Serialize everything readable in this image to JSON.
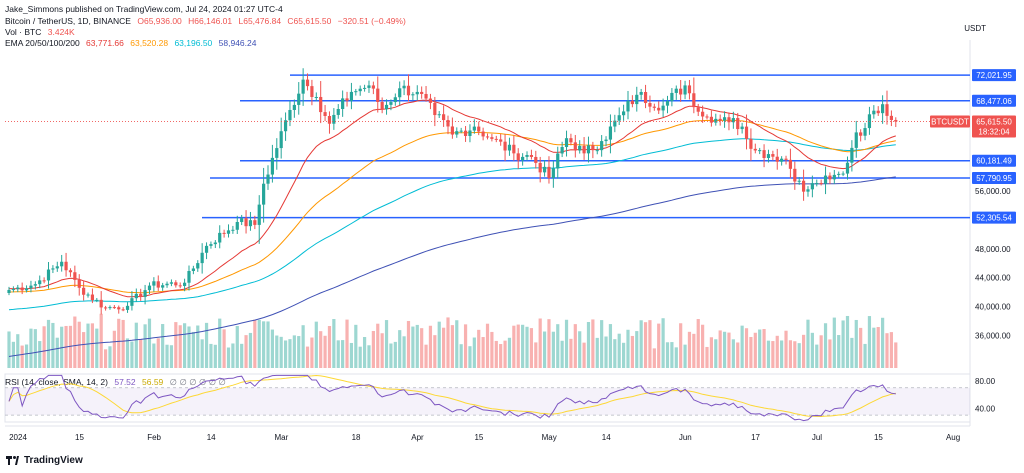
{
  "header": {
    "published": "Jake_Simmons published on TradingView.com, Jul 24, 2024 01:27 UTC-4",
    "symbol": "Bitcoin / TetherUS, 1D, BINANCE",
    "ohlc": {
      "o": "O65,936.00",
      "h": "H66,146.01",
      "l": "L65,476.84",
      "c": "C65,615.50",
      "chg": "−320.51 (−0.49%)"
    },
    "vol_label": "Vol · BTC",
    "vol_value": "3.424K",
    "ema_label": "EMA 20/50/100/200",
    "ema_values": [
      "63,771.66",
      "63,520.28",
      "63,196.50",
      "58,946.24"
    ],
    "rsi_label": "RSI (14, close, SMA, 14, 2)",
    "rsi_values": [
      "57.52",
      "56.59"
    ],
    "rsi_na": "∅ ∅ ∅ ∅ ∅ ∅"
  },
  "currency": "USDT",
  "footer_brand": "TradingView",
  "colors": {
    "up": "#26a69a",
    "down": "#ef5350",
    "ema20": "#e53935",
    "ema50": "#ff9800",
    "ema100": "#00bcd4",
    "ema200": "#3f51b5",
    "level": "#2962ff",
    "rsi": "#7e57c2",
    "rsi_ma": "#fdd835"
  },
  "chart_data": {
    "type": "candlestick",
    "title": "Bitcoin / TetherUS, 1D, BINANCE",
    "ylim": [
      31500,
      75500
    ],
    "y_ticks": [
      36000,
      40000,
      44000,
      48000,
      56000
    ],
    "y_tick_labels": [
      "36,000.00",
      "40,000.00",
      "44,000.00",
      "48,000.00",
      "56,000.00"
    ],
    "x_labels": [
      "2024",
      "15",
      "Feb",
      "14",
      "Mar",
      "18",
      "Apr",
      "15",
      "May",
      "14",
      "Jun",
      "17",
      "Jul",
      "15",
      "Aug"
    ],
    "x_label_days": [
      0,
      14,
      31,
      44,
      60,
      77,
      91,
      105,
      121,
      134,
      152,
      168,
      182,
      196,
      213
    ],
    "levels": [
      72021.95,
      68477.06,
      60181.49,
      57790.95,
      52305.54
    ],
    "level_labels": [
      "72,021.95",
      "68,477.06",
      "60,181.49",
      "57,790.95",
      "52,305.54"
    ],
    "last_price": 65615.5,
    "last_price_label": "65,615.50",
    "ticker_label": "BTCUSDT",
    "countdown": "18:32:04",
    "price_anchors": [
      [
        0,
        42300
      ],
      [
        6,
        43100
      ],
      [
        12,
        46200
      ],
      [
        16,
        42600
      ],
      [
        22,
        39800
      ],
      [
        27,
        40100
      ],
      [
        32,
        42900
      ],
      [
        40,
        43300
      ],
      [
        45,
        48400
      ],
      [
        52,
        51700
      ],
      [
        56,
        51300
      ],
      [
        58,
        57000
      ],
      [
        64,
        67200
      ],
      [
        67,
        71400
      ],
      [
        70,
        69000
      ],
      [
        73,
        65300
      ],
      [
        78,
        69700
      ],
      [
        82,
        70600
      ],
      [
        85,
        67300
      ],
      [
        89,
        70200
      ],
      [
        93,
        69700
      ],
      [
        97,
        66500
      ],
      [
        101,
        63800
      ],
      [
        106,
        64900
      ],
      [
        110,
        63200
      ],
      [
        115,
        61200
      ],
      [
        119,
        60700
      ],
      [
        123,
        57800
      ],
      [
        127,
        63300
      ],
      [
        131,
        61200
      ],
      [
        135,
        62900
      ],
      [
        140,
        67000
      ],
      [
        143,
        69300
      ],
      [
        149,
        67800
      ],
      [
        154,
        70600
      ],
      [
        158,
        66300
      ],
      [
        163,
        66200
      ],
      [
        167,
        64900
      ],
      [
        170,
        61600
      ],
      [
        173,
        61100
      ],
      [
        177,
        60300
      ],
      [
        181,
        55900
      ],
      [
        184,
        57100
      ],
      [
        187,
        57600
      ],
      [
        190,
        58400
      ],
      [
        193,
        64100
      ],
      [
        195,
        64700
      ],
      [
        197,
        67100
      ],
      [
        199,
        68000
      ],
      [
        202,
        65600
      ]
    ],
    "ema_seed": {
      "ema20": 42500,
      "ema50": 42000,
      "ema100": 39500,
      "ema200": 33000
    },
    "ema_periods": {
      "ema20": 20,
      "ema50": 50,
      "ema100": 100,
      "ema200": 200
    },
    "rsi": {
      "ylim": [
        20,
        90
      ],
      "ticks": [
        80,
        40
      ],
      "tick_labels": [
        "80.00",
        "40.00"
      ],
      "band": [
        30,
        70
      ]
    }
  }
}
